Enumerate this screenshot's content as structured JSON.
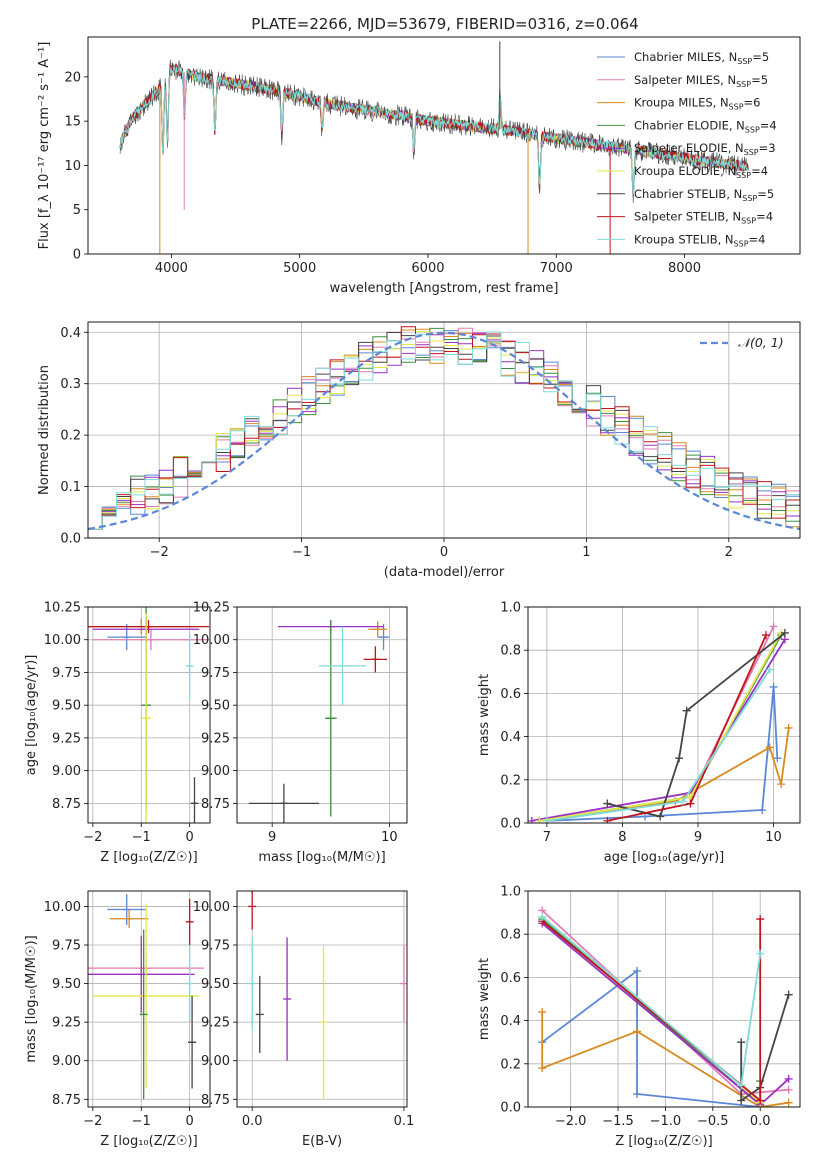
{
  "figure": {
    "title": "PLATE=2266, MJD=53679, FIBERID=0316, z=0.064"
  },
  "colors": {
    "chabrier_miles": "#5b87d6",
    "salpeter_miles": "#e07bb4",
    "kroupa_miles": "#d98a1e",
    "chabrier_elodie": "#3f8f3f",
    "salpeter_elodie": "#9b30c2",
    "kroupa_elodie": "#e3e84a",
    "chabrier_stelib": "#444444",
    "salpeter_stelib": "#c0141e",
    "kroupa_stelib": "#7fdada",
    "normal_curve": "#5b87d6"
  },
  "chart_data": [
    {
      "id": "spectrum",
      "type": "line",
      "title": "PLATE=2266, MJD=53679, FIBERID=0316, z=0.064",
      "xlabel": "wavelength [Angstrom, rest frame]",
      "ylabel": "Flux [f_λ 10⁻¹⁷ erg cm⁻² s⁻¹ A⁻¹]",
      "xlim": [
        3350,
        8900
      ],
      "ylim": [
        0,
        24.5
      ],
      "xticks": [
        "4000",
        "5000",
        "6000",
        "7000",
        "8000"
      ],
      "yticks": [
        "0",
        "5",
        "10",
        "15",
        "20"
      ],
      "grid": false,
      "legend_position": "top-right",
      "legend": [
        "Chabrier MILES, N_SSP=5",
        "Salpeter MILES, N_SSP=5",
        "Kroupa MILES, N_SSP=6",
        "Chabrier ELODIE, N_SSP=4",
        "Salpeter ELODIE, N_SSP=3",
        "Kroupa ELODIE, N_SSP=4",
        "Chabrier STELIB, N_SSP=5",
        "Salpeter STELIB, N_SSP=4",
        "Kroupa STELIB, N_SSP=4"
      ],
      "continuum_x": [
        3600,
        3700,
        3800,
        3900,
        4000,
        4100,
        4200,
        4400,
        4600,
        4800,
        5000,
        5200,
        5500,
        5800,
        6000,
        6300,
        6600,
        6900,
        7200,
        7500,
        7800,
        8100,
        8400,
        8500
      ],
      "continuum_y": [
        12.5,
        15.5,
        17.0,
        18.5,
        21.0,
        20.5,
        20.0,
        19.5,
        19.0,
        18.5,
        17.8,
        17.0,
        16.3,
        15.6,
        15.0,
        14.5,
        14.0,
        13.3,
        12.6,
        12.0,
        11.3,
        10.6,
        10.0,
        9.9
      ]
    },
    {
      "id": "residuals",
      "type": "line",
      "xlabel": "(data-model)/error",
      "ylabel": "Normed distribution",
      "xlim": [
        -2.5,
        2.5
      ],
      "ylim": [
        0,
        0.42
      ],
      "xticks": [
        "−2",
        "−1",
        "0",
        "1",
        "2"
      ],
      "yticks": [
        "0.0",
        "0.1",
        "0.2",
        "0.3",
        "0.4"
      ],
      "grid": true,
      "legend_position": "top-right",
      "legend": [
        "𝒩(0, 1)"
      ],
      "normal_curve": {
        "mean": 0,
        "sd": 1
      },
      "histogram_bin_width": 0.1
    },
    {
      "id": "age_vs_Z",
      "type": "scatter",
      "xlabel": "Z [log₁₀(Z/Z☉)]",
      "ylabel": "age  [log₁₀(age/yr)]",
      "xlim": [
        -2.1,
        0.42
      ],
      "ylim": [
        8.6,
        10.25
      ],
      "xticks": [
        "−2",
        "−1",
        "0"
      ],
      "yticks": [
        "8.75",
        "9.00",
        "9.25",
        "9.50",
        "9.75",
        "10.00",
        "10.25"
      ],
      "grid": true,
      "points": [
        {
          "x": -1.3,
          "y": 10.02,
          "xerr": 0.4,
          "yerr": 0.1,
          "series": "chabrier_miles"
        },
        {
          "x": -1.0,
          "y": 10.1,
          "xerr": 1.1,
          "yerr": 0.06,
          "series": "kroupa_miles"
        },
        {
          "x": -0.8,
          "y": 10.0,
          "xerr": 1.2,
          "yerr": 0.08,
          "series": "salpeter_miles"
        },
        {
          "x": -0.85,
          "y": 10.1,
          "xerr": 1.25,
          "yerr": 0.05,
          "series": "salpeter_stelib"
        },
        {
          "x": -0.9,
          "y": 10.08,
          "xerr": 1.1,
          "yerr": 0.1,
          "series": "salpeter_elodie"
        },
        {
          "x": -0.9,
          "y": 9.5,
          "xerr": 0.1,
          "yerr": 0.8,
          "series": "chabrier_elodie"
        },
        {
          "x": -0.9,
          "y": 9.4,
          "xerr": 0.1,
          "yerr": 0.8,
          "series": "kroupa_elodie"
        },
        {
          "x": 0.0,
          "y": 9.8,
          "xerr": 0.05,
          "yerr": 0.25,
          "series": "kroupa_stelib"
        },
        {
          "x": 0.1,
          "y": 8.75,
          "xerr": 0.05,
          "yerr": 0.2,
          "series": "chabrier_stelib"
        }
      ]
    },
    {
      "id": "age_vs_mass",
      "type": "scatter",
      "xlabel": "mass [log₁₀(M/M☉)]",
      "ylabel": "",
      "xlim": [
        8.7,
        10.15
      ],
      "ylim": [
        8.6,
        10.25
      ],
      "xticks": [
        "9",
        "10"
      ],
      "yticks": [
        "8.75",
        "9.00",
        "9.25",
        "9.50",
        "9.75",
        "10.00",
        "10.25"
      ],
      "grid": true,
      "points": [
        {
          "x": 9.95,
          "y": 10.02,
          "xerr": 0.05,
          "yerr": 0.1,
          "series": "chabrier_miles"
        },
        {
          "x": 9.9,
          "y": 10.08,
          "xerr": 0.08,
          "yerr": 0.06,
          "series": "kroupa_miles"
        },
        {
          "x": 9.5,
          "y": 10.1,
          "xerr": 0.45,
          "yerr": 0.05,
          "series": "salpeter_elodie"
        },
        {
          "x": 9.88,
          "y": 9.85,
          "xerr": 0.1,
          "yerr": 0.1,
          "series": "salpeter_stelib"
        },
        {
          "x": 9.5,
          "y": 9.4,
          "xerr": 0.05,
          "yerr": 0.75,
          "series": "chabrier_elodie"
        },
        {
          "x": 9.6,
          "y": 9.8,
          "xerr": 0.2,
          "yerr": 0.3,
          "series": "kroupa_stelib"
        },
        {
          "x": 9.1,
          "y": 8.75,
          "xerr": 0.3,
          "yerr": 0.15,
          "series": "chabrier_stelib"
        }
      ]
    },
    {
      "id": "weight_vs_age",
      "type": "line",
      "xlabel": "age  [log₁₀(age/yr)]",
      "ylabel": "mass weight",
      "xlim": [
        6.75,
        10.35
      ],
      "ylim": [
        0,
        1.0
      ],
      "xticks": [
        "7",
        "8",
        "9",
        "10"
      ],
      "yticks": [
        "0.0",
        "0.2",
        "0.4",
        "0.6",
        "0.8",
        "1.0"
      ],
      "grid": true,
      "series": [
        {
          "key": "chabrier_miles",
          "x": [
            7.0,
            8.3,
            9.85,
            10.0,
            10.05
          ],
          "y": [
            0.01,
            0.03,
            0.06,
            0.63,
            0.3
          ]
        },
        {
          "key": "salpeter_miles",
          "x": [
            6.9,
            8.9,
            10.0
          ],
          "y": [
            0.01,
            0.12,
            0.91
          ]
        },
        {
          "key": "kroupa_miles",
          "x": [
            7.0,
            8.7,
            9.95,
            10.1,
            10.2
          ],
          "y": [
            0.01,
            0.1,
            0.35,
            0.18,
            0.44
          ]
        },
        {
          "key": "chabrier_elodie",
          "x": [
            6.9,
            8.9,
            10.1
          ],
          "y": [
            0.01,
            0.12,
            0.87
          ]
        },
        {
          "key": "salpeter_elodie",
          "x": [
            6.8,
            8.9,
            10.15
          ],
          "y": [
            0.01,
            0.14,
            0.85
          ]
        },
        {
          "key": "kroupa_elodie",
          "x": [
            6.9,
            8.9,
            10.1
          ],
          "y": [
            0.01,
            0.12,
            0.88
          ]
        },
        {
          "key": "chabrier_stelib",
          "x": [
            7.8,
            8.5,
            8.75,
            8.85,
            10.15
          ],
          "y": [
            0.09,
            0.03,
            0.3,
            0.52,
            0.88
          ]
        },
        {
          "key": "salpeter_stelib",
          "x": [
            7.8,
            8.9,
            9.9
          ],
          "y": [
            0.01,
            0.09,
            0.87
          ]
        },
        {
          "key": "kroupa_stelib",
          "x": [
            7.0,
            8.8,
            9.95
          ],
          "y": [
            0.01,
            0.1,
            0.71
          ]
        }
      ]
    },
    {
      "id": "mass_vs_Z",
      "type": "scatter",
      "xlabel": "Z [log₁₀(Z/Z☉)]",
      "ylabel": "mass [log₁₀(M/M☉)]",
      "xlim": [
        -2.1,
        0.42
      ],
      "ylim": [
        8.7,
        10.1
      ],
      "xticks": [
        "−2",
        "−1",
        "0"
      ],
      "yticks": [
        "8.75",
        "9.00",
        "9.25",
        "9.50",
        "9.75",
        "10.00"
      ],
      "grid": true,
      "points": [
        {
          "x": -1.3,
          "y": 9.98,
          "xerr": 0.4,
          "yerr": 0.1,
          "series": "chabrier_miles"
        },
        {
          "x": -1.25,
          "y": 9.92,
          "xerr": 0.4,
          "yerr": 0.06,
          "series": "kroupa_miles"
        },
        {
          "x": -0.9,
          "y": 9.6,
          "xerr": 1.2,
          "yerr": 0.05,
          "series": "salpeter_miles"
        },
        {
          "x": -1.0,
          "y": 9.56,
          "xerr": 1.1,
          "yerr": 0.25,
          "series": "salpeter_elodie"
        },
        {
          "x": -0.9,
          "y": 9.42,
          "xerr": 1.1,
          "yerr": 0.6,
          "series": "kroupa_elodie"
        },
        {
          "x": -0.95,
          "y": 9.3,
          "xerr": 0.05,
          "yerr": 0.55,
          "series": "chabrier_elodie"
        },
        {
          "x": 0.0,
          "y": 9.9,
          "xerr": 0.05,
          "yerr": 0.15,
          "series": "salpeter_stelib"
        },
        {
          "x": 0.0,
          "y": 9.5,
          "xerr": 0.05,
          "yerr": 0.25,
          "series": "kroupa_stelib"
        },
        {
          "x": 0.05,
          "y": 9.12,
          "xerr": 0.08,
          "yerr": 0.3,
          "series": "chabrier_stelib"
        }
      ]
    },
    {
      "id": "mass_vs_ebv",
      "type": "scatter",
      "xlabel": "E(B-V)",
      "ylabel": "",
      "xlim": [
        -0.01,
        0.102
      ],
      "ylim": [
        8.7,
        10.1
      ],
      "xticks": [
        "0.0",
        "0.1"
      ],
      "yticks": [
        "8.75",
        "9.00",
        "9.25",
        "9.50",
        "9.75",
        "10.00"
      ],
      "grid": true,
      "points": [
        {
          "x": 0.0,
          "y": 10.0,
          "yerr": 0.15,
          "series": "salpeter_stelib"
        },
        {
          "x": 0.0,
          "y": 9.5,
          "yerr": 0.3,
          "series": "kroupa_stelib"
        },
        {
          "x": 0.005,
          "y": 9.3,
          "yerr": 0.25,
          "series": "chabrier_stelib"
        },
        {
          "x": 0.023,
          "y": 9.4,
          "yerr": 0.4,
          "series": "salpeter_elodie"
        },
        {
          "x": 0.047,
          "y": 9.25,
          "yerr": 0.5,
          "series": "kroupa_elodie"
        },
        {
          "x": 0.1,
          "y": 9.5,
          "yerr": 0.25,
          "series": "salpeter_miles"
        }
      ]
    },
    {
      "id": "weight_vs_Z",
      "type": "line",
      "xlabel": "Z [log₁₀(Z/Z☉)]",
      "ylabel": "mass weight",
      "xlim": [
        -2.45,
        0.42
      ],
      "ylim": [
        0,
        1.0
      ],
      "xticks": [
        "−2.0",
        "−1.5",
        "−1.0",
        "−0.5",
        "0.0"
      ],
      "yticks": [
        "0.0",
        "0.2",
        "0.4",
        "0.6",
        "0.8",
        "1.0"
      ],
      "grid": true,
      "series": [
        {
          "key": "chabrier_miles",
          "x": [
            -2.3,
            -1.3,
            -1.3,
            0.0
          ],
          "y": [
            0.3,
            0.63,
            0.06,
            0.0
          ]
        },
        {
          "key": "salpeter_miles",
          "x": [
            -2.3,
            -0.2,
            0.3
          ],
          "y": [
            0.91,
            0.06,
            0.08
          ]
        },
        {
          "key": "kroupa_miles",
          "x": [
            -2.3,
            -2.3,
            -1.3,
            0.0,
            0.3
          ],
          "y": [
            0.44,
            0.18,
            0.35,
            0.0,
            0.02
          ]
        },
        {
          "key": "chabrier_elodie",
          "x": [
            -2.3,
            0.0,
            0.0
          ],
          "y": [
            0.87,
            0.01,
            0.12
          ]
        },
        {
          "key": "salpeter_elodie",
          "x": [
            -2.3,
            0.0,
            0.3
          ],
          "y": [
            0.85,
            0.01,
            0.13
          ]
        },
        {
          "key": "kroupa_elodie",
          "x": [
            -2.3,
            -0.2,
            0.0
          ],
          "y": [
            0.88,
            0.1,
            0.02
          ]
        },
        {
          "key": "chabrier_stelib",
          "x": [
            -0.2,
            -0.2,
            0.0,
            0.3
          ],
          "y": [
            0.3,
            0.03,
            0.09,
            0.52
          ]
        },
        {
          "key": "salpeter_stelib",
          "x": [
            -2.3,
            0.0,
            0.0
          ],
          "y": [
            0.86,
            0.03,
            0.87
          ]
        },
        {
          "key": "kroupa_stelib",
          "x": [
            -2.3,
            -0.2,
            0.0
          ],
          "y": [
            0.88,
            0.1,
            0.71
          ]
        }
      ]
    }
  ]
}
